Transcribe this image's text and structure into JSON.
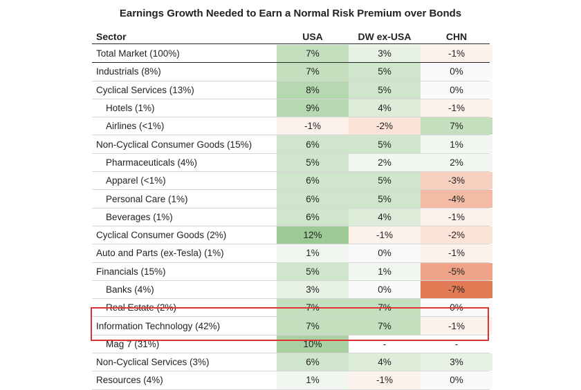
{
  "title": "Earnings Growth Needed to Earn a Normal Risk Premium over Bonds",
  "columns": {
    "sector": "Sector",
    "usa": "USA",
    "dw": "DW ex-USA",
    "chn": "CHN"
  },
  "rows": [
    {
      "sector": "Total Market (100%)",
      "indent": false,
      "usa": "7%",
      "dw": "3%",
      "chn": "-1%"
    },
    {
      "sector": "Industrials (8%)",
      "indent": false,
      "usa": "7%",
      "dw": "5%",
      "chn": "0%"
    },
    {
      "sector": "Cyclical Services (13%)",
      "indent": false,
      "usa": "8%",
      "dw": "5%",
      "chn": "0%"
    },
    {
      "sector": "Hotels (1%)",
      "indent": true,
      "usa": "9%",
      "dw": "4%",
      "chn": "-1%"
    },
    {
      "sector": "Airlines (<1%)",
      "indent": true,
      "usa": "-1%",
      "dw": "-2%",
      "chn": "7%"
    },
    {
      "sector": "Non-Cyclical Consumer Goods (15%)",
      "indent": false,
      "usa": "6%",
      "dw": "5%",
      "chn": "1%"
    },
    {
      "sector": "Pharmaceuticals (4%)",
      "indent": true,
      "usa": "5%",
      "dw": "2%",
      "chn": "2%"
    },
    {
      "sector": "Apparel (<1%)",
      "indent": true,
      "usa": "6%",
      "dw": "5%",
      "chn": "-3%"
    },
    {
      "sector": "Personal Care (1%)",
      "indent": true,
      "usa": "6%",
      "dw": "5%",
      "chn": "-4%"
    },
    {
      "sector": "Beverages (1%)",
      "indent": true,
      "usa": "6%",
      "dw": "4%",
      "chn": "-1%"
    },
    {
      "sector": "Cyclical Consumer Goods (2%)",
      "indent": false,
      "usa": "12%",
      "dw": "-1%",
      "chn": "-2%"
    },
    {
      "sector": "Auto and Parts (ex-Tesla) (1%)",
      "indent": false,
      "usa": "1%",
      "dw": "0%",
      "chn": "-1%"
    },
    {
      "sector": "Financials (15%)",
      "indent": false,
      "usa": "5%",
      "dw": "1%",
      "chn": "-5%"
    },
    {
      "sector": "Banks (4%)",
      "indent": true,
      "usa": "3%",
      "dw": "0%",
      "chn": "-7%"
    },
    {
      "sector": "Real Estate (2%)",
      "indent": true,
      "usa": "7%",
      "dw": "7%",
      "chn": "0%"
    },
    {
      "sector": "Information Technology (42%)",
      "indent": false,
      "usa": "7%",
      "dw": "7%",
      "chn": "-1%"
    },
    {
      "sector": "Mag 7 (31%)",
      "indent": true,
      "usa": "10%",
      "dw": "-",
      "chn": "-"
    },
    {
      "sector": "Non-Cyclical Services (3%)",
      "indent": false,
      "usa": "6%",
      "dw": "4%",
      "chn": "3%"
    },
    {
      "sector": "Resources (4%)",
      "indent": false,
      "usa": "1%",
      "dw": "-1%",
      "chn": "0%"
    }
  ],
  "colors": {
    "green_scale": [
      "#fbfdfb",
      "#f2f8f1",
      "#e7f2e5",
      "#dcecd9",
      "#d0e6cc",
      "#c3dfbe",
      "#b6d8b0",
      "#a9d1a2",
      "#9cca94"
    ],
    "red_scale": [
      "#fdf1ec",
      "#fbe3d8",
      "#f8d0bf",
      "#f3baa4",
      "#eea286",
      "#e88a67",
      "#e27a55"
    ],
    "highlight_border": "#dd3333"
  }
}
